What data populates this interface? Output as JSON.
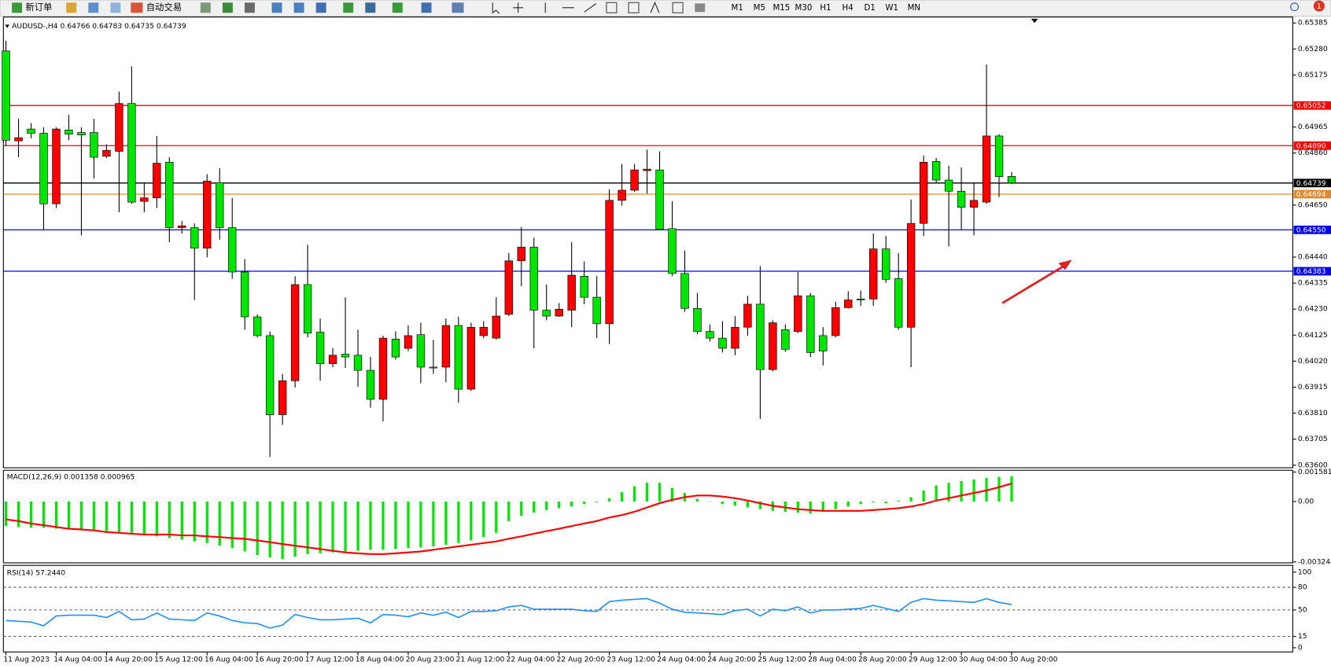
{
  "toolbar": {
    "buttons": [
      "新订单",
      "自动交易"
    ],
    "timeframes": [
      "M1",
      "M5",
      "M15",
      "M30",
      "H1",
      "H4",
      "D1",
      "W1",
      "MN"
    ],
    "notifications": "1"
  },
  "chart_data": [
    {
      "type": "candlestick",
      "title": "AUDUSD-,H4  0.64766 0.64783 0.64735 0.64739",
      "categories": [
        "11 Aug 2023",
        null,
        null,
        null,
        "14 Aug 04:00",
        null,
        null,
        null,
        "14 Aug 20:00",
        null,
        null,
        null,
        "15 Aug 12:00",
        null,
        null,
        null,
        "16 Aug 04:00",
        null,
        null,
        null,
        "16 Aug 20:00",
        null,
        null,
        null,
        "17 Aug 12:00",
        null,
        null,
        null,
        "18 Aug 04:00",
        null,
        null,
        null,
        "20 Aug 23:00",
        null,
        null,
        null,
        "21 Aug 12:00",
        null,
        null,
        null,
        "22 Aug 04:00",
        null,
        null,
        null,
        "22 Aug 20:00",
        null,
        null,
        null,
        "23 Aug 12:00",
        null,
        null,
        null,
        "24 Aug 04:00",
        null,
        null,
        null,
        "24 Aug 20:00",
        null,
        null,
        null,
        "25 Aug 12:00",
        null,
        null,
        null,
        "28 Aug 04:00",
        null,
        null,
        null,
        "28 Aug 20:00",
        null,
        null,
        null,
        "29 Aug 12:00",
        null,
        null,
        null,
        "30 Aug 04:00",
        null,
        null,
        null,
        "30 Aug 20:00"
      ],
      "open": [
        0.65272,
        0.64909,
        0.64957,
        0.6494,
        0.64655,
        0.64953,
        0.64943,
        0.64943,
        0.64847,
        0.64867,
        0.6506,
        0.64665,
        0.64679,
        0.64823,
        0.64559,
        0.64559,
        0.64476,
        0.64741,
        0.64559,
        0.6438,
        0.64199,
        0.64123,
        0.63804,
        0.63941,
        0.64329,
        0.64137,
        0.6401,
        0.64048,
        0.64044,
        0.63983,
        0.63866,
        0.64109,
        0.64072,
        0.64127,
        0.63996,
        0.63996,
        0.64164,
        0.63907,
        0.64123,
        0.64113,
        0.64209,
        0.64425,
        0.6448,
        0.64226,
        0.64202,
        0.64226,
        0.64363,
        0.64278,
        0.64171,
        0.64669,
        0.6471,
        0.64789,
        0.64792,
        0.64555,
        0.64374,
        0.64233,
        0.6414,
        0.64113,
        0.64072,
        0.64157,
        0.6425,
        0.63986,
        0.64147,
        0.6414,
        0.64284,
        0.64123,
        0.64123,
        0.64236,
        0.64271,
        0.64271,
        0.64473,
        0.64353,
        0.64157,
        0.64576,
        0.64826,
        0.64751,
        0.64706,
        0.64641,
        0.64662,
        0.64929,
        0.64766
      ],
      "high": [
        0.65313,
        0.64998,
        0.64981,
        0.64964,
        0.64964,
        0.65015,
        0.64964,
        0.64998,
        0.64895,
        0.65108,
        0.6521,
        0.64741,
        0.64929,
        0.64843,
        0.64586,
        0.64576,
        0.64775,
        0.64799,
        0.64679,
        0.64432,
        0.64209,
        0.6414,
        0.63969,
        0.64363,
        0.6449,
        0.64192,
        0.64072,
        0.64278,
        0.64147,
        0.64037,
        0.64123,
        0.6414,
        0.64164,
        0.64175,
        0.64106,
        0.64192,
        0.64199,
        0.64175,
        0.64182,
        0.64278,
        0.64456,
        0.64562,
        0.64518,
        0.64329,
        0.64254,
        0.645,
        0.64422,
        0.64363,
        0.64713,
        0.64816,
        0.64816,
        0.64874,
        0.64867,
        0.64665,
        0.64466,
        0.64295,
        0.64168,
        0.64182,
        0.64202,
        0.64284,
        0.64404,
        0.64185,
        0.64168,
        0.6438,
        0.64295,
        0.64157,
        0.6426,
        0.64302,
        0.64305,
        0.64535,
        0.64525,
        0.64456,
        0.64672,
        0.6485,
        0.6484,
        0.64809,
        0.64802,
        0.64741,
        0.65217,
        0.64936,
        0.64783
      ],
      "low": [
        0.64888,
        0.64843,
        0.64919,
        0.64552,
        0.64638,
        0.64912,
        0.64528,
        0.64758,
        0.6484,
        0.64621,
        0.64655,
        0.64621,
        0.64638,
        0.645,
        0.64535,
        0.64267,
        0.64439,
        0.64511,
        0.64353,
        0.64147,
        0.64116,
        0.63633,
        0.63763,
        0.63914,
        0.64116,
        0.63941,
        0.63996,
        0.63993,
        0.63917,
        0.63832,
        0.63777,
        0.64027,
        0.64061,
        0.63931,
        0.63969,
        0.63935,
        0.63852,
        0.639,
        0.64113,
        0.64106,
        0.64202,
        0.64322,
        0.64072,
        0.64185,
        0.64199,
        0.64157,
        0.6425,
        0.64113,
        0.64089,
        0.64648,
        0.64703,
        0.64696,
        0.64548,
        0.64363,
        0.64219,
        0.6413,
        0.64099,
        0.64055,
        0.64044,
        0.64123,
        0.63787,
        0.63979,
        0.64058,
        0.64133,
        0.64037,
        0.64003,
        0.64116,
        0.64233,
        0.64243,
        0.64243,
        0.64336,
        0.64147,
        0.63996,
        0.64525,
        0.64741,
        0.64483,
        0.64552,
        0.64528,
        0.64655,
        0.64682,
        0.64735
      ],
      "close": [
        0.64912,
        0.64922,
        0.6494,
        0.64655,
        0.64957,
        0.64936,
        0.64933,
        0.64843,
        0.64871,
        0.6506,
        0.64662,
        0.64679,
        0.64819,
        0.64559,
        0.64566,
        0.64476,
        0.64747,
        0.64559,
        0.6438,
        0.64199,
        0.64123,
        0.63804,
        0.63941,
        0.64329,
        0.64133,
        0.6401,
        0.64044,
        0.64037,
        0.63983,
        0.63866,
        0.64113,
        0.64037,
        0.64123,
        0.63996,
        0.63993,
        0.64164,
        0.63907,
        0.64157,
        0.64157,
        0.64202,
        0.64425,
        0.6448,
        0.64226,
        0.64202,
        0.6423,
        0.64367,
        0.64278,
        0.64171,
        0.64669,
        0.6471,
        0.64792,
        0.64795,
        0.64552,
        0.64374,
        0.64233,
        0.6414,
        0.64113,
        0.64072,
        0.64157,
        0.6425,
        0.63986,
        0.64175,
        0.64068,
        0.64284,
        0.64055,
        0.64061,
        0.64236,
        0.64267,
        0.64267,
        0.64473,
        0.6435,
        0.64157,
        0.64576,
        0.64823,
        0.64751,
        0.64706,
        0.64641,
        0.64669,
        0.64929,
        0.64765,
        0.64739
      ],
      "up_color": "#ff0000",
      "down_color": "#00e600",
      "ylim": [
        0.636,
        0.65385
      ],
      "yticks": [
        0.65385,
        {
          "value": 0.6528,
          "label": "0.65280"
        },
        0.65175,
        0.64965,
        {
          "value": 0.6486,
          "label": "0.64860"
        },
        {
          "value": 0.6465,
          "label": "0.64650"
        },
        {
          "value": 0.6444,
          "label": "0.64440"
        },
        0.64335,
        {
          "value": 0.6423,
          "label": "0.64230"
        },
        0.64125,
        {
          "value": 0.6402,
          "label": "0.64020"
        },
        0.63915,
        {
          "value": 0.6381,
          "label": "0.63810"
        },
        0.63705,
        {
          "value": 0.636,
          "label": "0.63600"
        }
      ],
      "hlines": [
        {
          "value": 0.65052,
          "label": "0.65052",
          "color": "#ff0000"
        },
        {
          "value": 0.6489,
          "label": "0.64890",
          "color": "#ff0000"
        },
        {
          "value": 0.64739,
          "label": "0.64739",
          "color": "#000000"
        },
        {
          "value": 0.64694,
          "label": "0.64694",
          "color": "#e08a2c"
        },
        {
          "value": 0.6455,
          "label": "0.64550",
          "color": "#0000ff"
        },
        {
          "value": 0.64383,
          "label": "0.64383",
          "color": "#0000ff"
        }
      ]
    },
    {
      "type": "macd",
      "title": "MACD(12,26,9) 0.001358 0.000965",
      "histogram": {
        "color": "#00e600",
        "values": [
          -0.00132,
          -0.00137,
          -0.00141,
          -0.00141,
          -0.00146,
          -0.00146,
          -0.0015,
          -0.00155,
          -0.00159,
          -0.00164,
          -0.00168,
          -0.00177,
          -0.00187,
          -0.00196,
          -0.00205,
          -0.00214,
          -0.00223,
          -0.00237,
          -0.0025,
          -0.00268,
          -0.00287,
          -0.003,
          -0.00309,
          -0.00296,
          -0.00282,
          -0.00278,
          -0.00273,
          -0.00268,
          -0.00264,
          -0.00259,
          -0.00259,
          -0.00255,
          -0.0025,
          -0.00246,
          -0.00241,
          -0.00232,
          -0.00223,
          -0.00209,
          -0.00191,
          -0.00168,
          -0.00105,
          -0.00077,
          -0.00059,
          -0.00046,
          -0.00036,
          -0.00027,
          -0.00014,
          -5e-05,
          0.00018,
          0.0005,
          0.00082,
          0.001,
          0.001,
          0.00073,
          0.00046,
          0.00014,
          -2e-05,
          -0.00014,
          -0.00023,
          -0.00032,
          -0.00041,
          -0.0005,
          -0.00055,
          -0.00059,
          -0.00064,
          -0.00055,
          -0.00041,
          -0.00027,
          -0.00014,
          -5e-05,
          -9e-05,
          5e-05,
          0.00023,
          0.00059,
          0.00086,
          0.001,
          0.00109,
          0.00118,
          0.00127,
          0.00132,
          0.001358
        ]
      },
      "signal": {
        "color": "#ff0000",
        "values": [
          -0.00096,
          -0.00105,
          -0.00118,
          -0.00127,
          -0.00137,
          -0.00146,
          -0.0015,
          -0.00155,
          -0.00164,
          -0.00168,
          -0.00173,
          -0.00177,
          -0.00177,
          -0.00177,
          -0.00182,
          -0.00182,
          -0.00187,
          -0.00191,
          -0.00196,
          -0.002,
          -0.00209,
          -0.00218,
          -0.00228,
          -0.00237,
          -0.00246,
          -0.00255,
          -0.00264,
          -0.00273,
          -0.00278,
          -0.00282,
          -0.00282,
          -0.00278,
          -0.00273,
          -0.00268,
          -0.00259,
          -0.0025,
          -0.00241,
          -0.00232,
          -0.00223,
          -0.00214,
          -0.002,
          -0.00187,
          -0.00173,
          -0.00159,
          -0.00146,
          -0.00132,
          -0.00118,
          -0.00105,
          -0.00086,
          -0.00073,
          -0.00055,
          -0.00032,
          -9e-05,
          9e-05,
          0.00023,
          0.00032,
          0.00032,
          0.00027,
          0.00018,
          5e-05,
          -9e-05,
          -0.00023,
          -0.00032,
          -0.00041,
          -0.00046,
          -0.0005,
          -0.0005,
          -0.0005,
          -0.0005,
          -0.00046,
          -0.00041,
          -0.00036,
          -0.00027,
          -0.00014,
          5e-05,
          0.00018,
          0.00032,
          0.00046,
          0.00059,
          0.00077,
          0.000965
        ]
      },
      "ylim": [
        -0.003244,
        0.001581
      ],
      "yticks": [
        0.001581,
        {
          "value": 0,
          "label": "0.00"
        },
        -0.003244
      ]
    },
    {
      "type": "rsi",
      "title": "RSI(14) 57.2440",
      "color": "#1e90ff",
      "values": [
        36,
        35,
        34,
        29,
        42,
        43,
        43,
        43,
        40,
        48,
        37,
        38,
        46,
        38,
        37,
        36,
        46,
        42,
        36,
        33,
        32,
        26,
        30,
        44,
        40,
        37,
        37,
        38,
        39,
        33,
        44,
        43,
        41,
        46,
        43,
        47,
        40,
        48,
        48,
        49,
        54,
        56,
        51,
        51,
        51,
        51,
        49,
        48,
        61,
        63,
        64,
        65,
        59,
        51,
        47,
        46,
        45,
        44,
        49,
        51,
        42,
        51,
        49,
        54,
        46,
        50,
        50,
        51,
        52,
        56,
        52,
        48,
        60,
        65,
        63,
        62,
        61,
        60,
        65,
        60,
        57.244
      ],
      "ylim": [
        0,
        100
      ],
      "yticks": [
        100,
        80,
        50,
        15,
        0
      ]
    }
  ]
}
